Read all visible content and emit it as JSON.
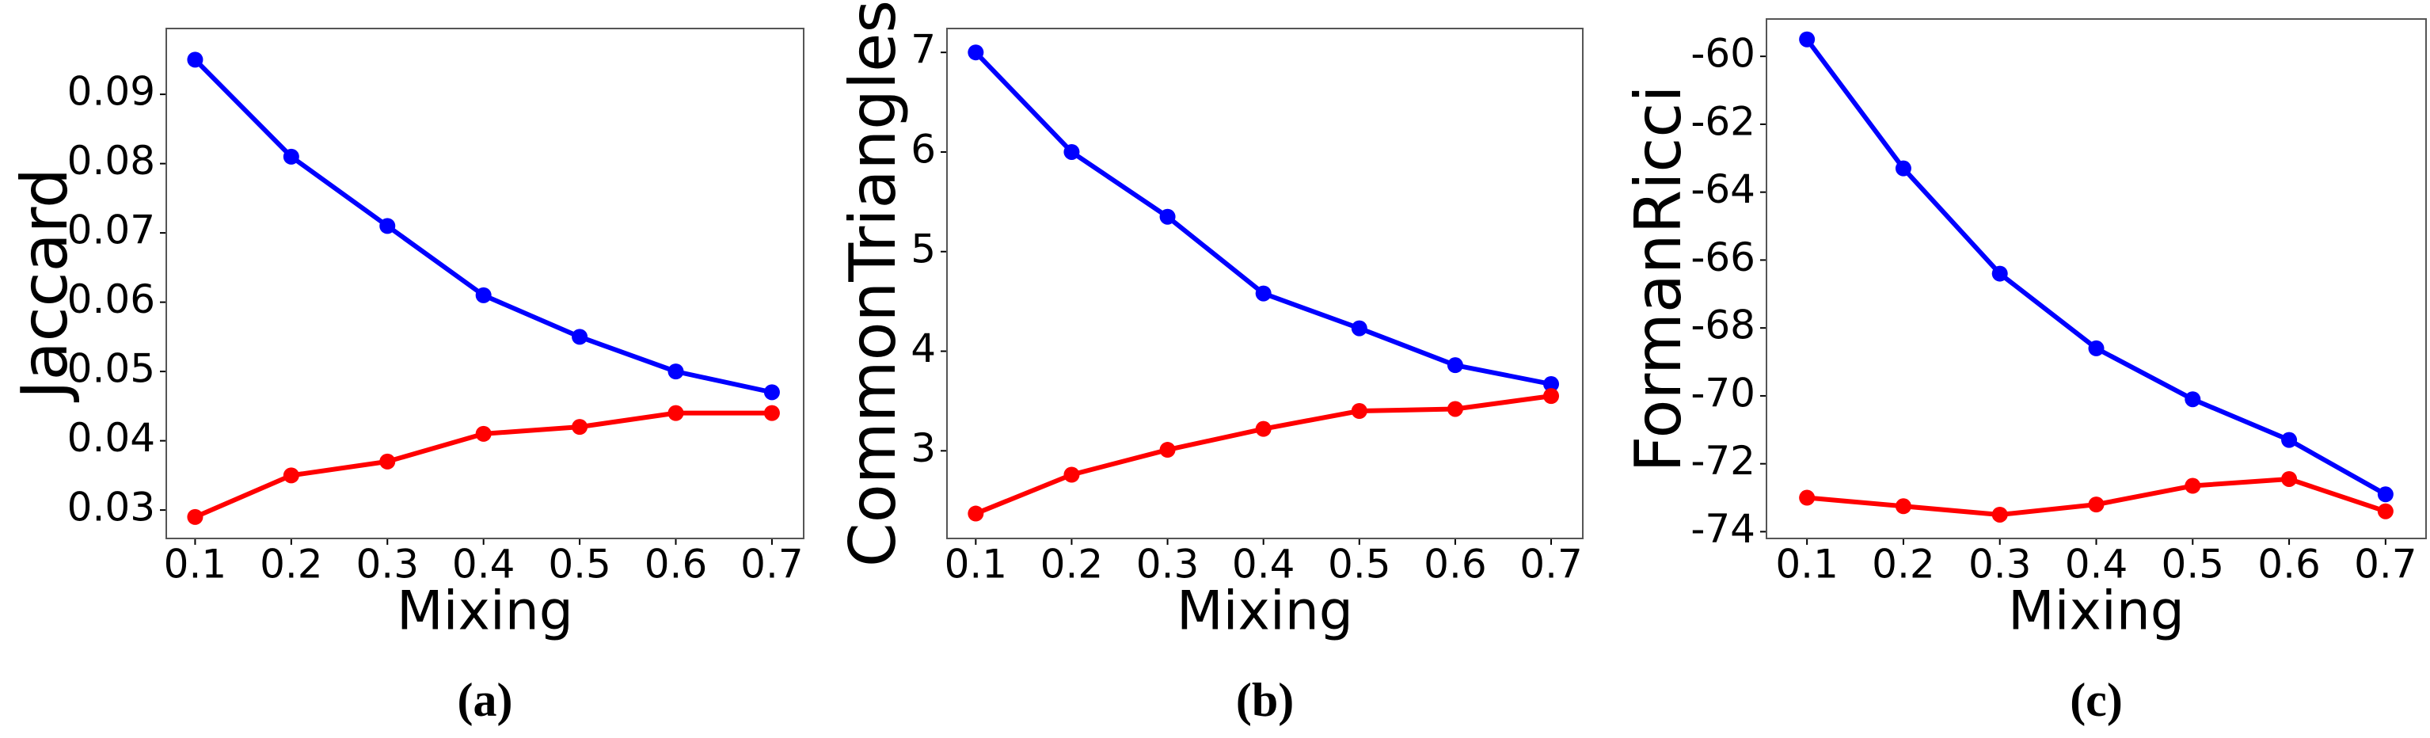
{
  "chart_data": [
    {
      "type": "line",
      "ylabel": "Jaccard",
      "xlabel": "Mixing",
      "caption": "a",
      "x": [
        0.1,
        0.2,
        0.3,
        0.4,
        0.5,
        0.6,
        0.7
      ],
      "series": [
        {
          "color": "#0000ff",
          "values": [
            0.095,
            0.081,
            0.071,
            0.061,
            0.055,
            0.05,
            0.047
          ]
        },
        {
          "color": "#ff0000",
          "values": [
            0.029,
            0.035,
            0.037,
            0.041,
            0.042,
            0.044,
            0.044
          ]
        }
      ],
      "xlim": [
        0.07,
        0.733
      ],
      "xticks": [
        0.1,
        0.2,
        0.3,
        0.4,
        0.5,
        0.6,
        0.7
      ],
      "ylim": [
        0.0259,
        0.0995
      ],
      "yticks": [
        0.03,
        0.04,
        0.05,
        0.06,
        0.07,
        0.08,
        0.09
      ]
    },
    {
      "type": "line",
      "ylabel": "CommonTriangles",
      "xlabel": "Mixing",
      "caption": "b",
      "x": [
        0.1,
        0.2,
        0.3,
        0.4,
        0.5,
        0.6,
        0.7
      ],
      "series": [
        {
          "color": "#0000ff",
          "values": [
            7.0,
            6.0,
            5.35,
            4.58,
            4.23,
            3.86,
            3.67
          ]
        },
        {
          "color": "#ff0000",
          "values": [
            2.37,
            2.76,
            3.01,
            3.22,
            3.4,
            3.42,
            3.55
          ]
        }
      ],
      "xlim": [
        0.07,
        0.733
      ],
      "xticks": [
        0.1,
        0.2,
        0.3,
        0.4,
        0.5,
        0.6,
        0.7
      ],
      "ylim": [
        2.12,
        7.24
      ],
      "yticks": [
        3,
        4,
        5,
        6,
        7
      ]
    },
    {
      "type": "line",
      "ylabel": "FormanRicci",
      "xlabel": "Mixing",
      "caption": "c",
      "x": [
        0.1,
        0.2,
        0.3,
        0.4,
        0.5,
        0.6,
        0.7
      ],
      "series": [
        {
          "color": "#0000ff",
          "values": [
            -59.5,
            -63.3,
            -66.4,
            -68.6,
            -70.1,
            -71.3,
            -72.9
          ]
        },
        {
          "color": "#ff0000",
          "values": [
            -73.0,
            -73.25,
            -73.5,
            -73.2,
            -72.65,
            -72.45,
            -73.4
          ]
        }
      ],
      "xlim": [
        0.058,
        0.742
      ],
      "xticks": [
        0.1,
        0.2,
        0.3,
        0.4,
        0.5,
        0.6,
        0.7
      ],
      "ylim": [
        -74.2,
        -58.9
      ],
      "yticks": [
        -60,
        -62,
        -64,
        -66,
        -68,
        -70,
        -72,
        -74
      ]
    }
  ]
}
